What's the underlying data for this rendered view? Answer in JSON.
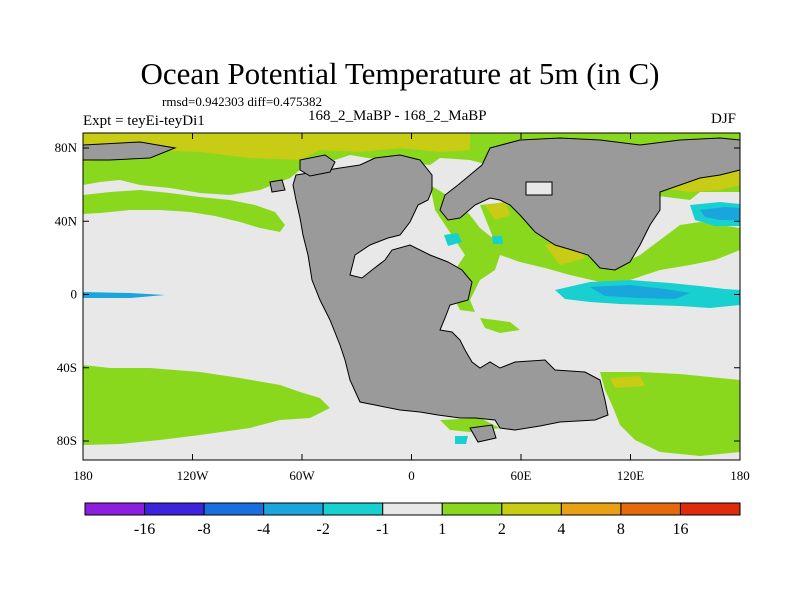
{
  "title": "Ocean Potential Temperature at 5m (in C)",
  "stats": {
    "rmsd_label": "rmsd=",
    "rmsd": "0.942303",
    "diff_label": "diff=",
    "diff": "0.475382"
  },
  "experiment": "Expt = teyEi-teyDi1",
  "case": "168_2_MaBP - 168_2_MaBP",
  "season": "DJF",
  "x_ticks": [
    "180",
    "120W",
    "60W",
    "0",
    "60E",
    "120E",
    "180"
  ],
  "y_ticks": [
    "80N",
    "40N",
    "0",
    "40S",
    "80S"
  ],
  "colorbar": {
    "labels": [
      "-16",
      "-8",
      "-4",
      "-2",
      "-1",
      "1",
      "2",
      "4",
      "8",
      "16"
    ],
    "colors": [
      "#8c1ee0",
      "#3d24dc",
      "#1a6fe0",
      "#1aa5dc",
      "#18d0d0",
      "#e8e8e8",
      "#8ad81e",
      "#c8cc14",
      "#e8a014",
      "#e46a10",
      "#e02a0c"
    ]
  },
  "colors": {
    "land": "#9a9a9a",
    "ocean_neutral": "#e8e8e8",
    "warm_light": "#8ad81e",
    "warm_mid": "#c8cc14",
    "warm_high": "#e8a014",
    "cool_light": "#18d0d0",
    "cool_mid": "#1aa5dc",
    "cool_high": "#1a6fe0"
  }
}
